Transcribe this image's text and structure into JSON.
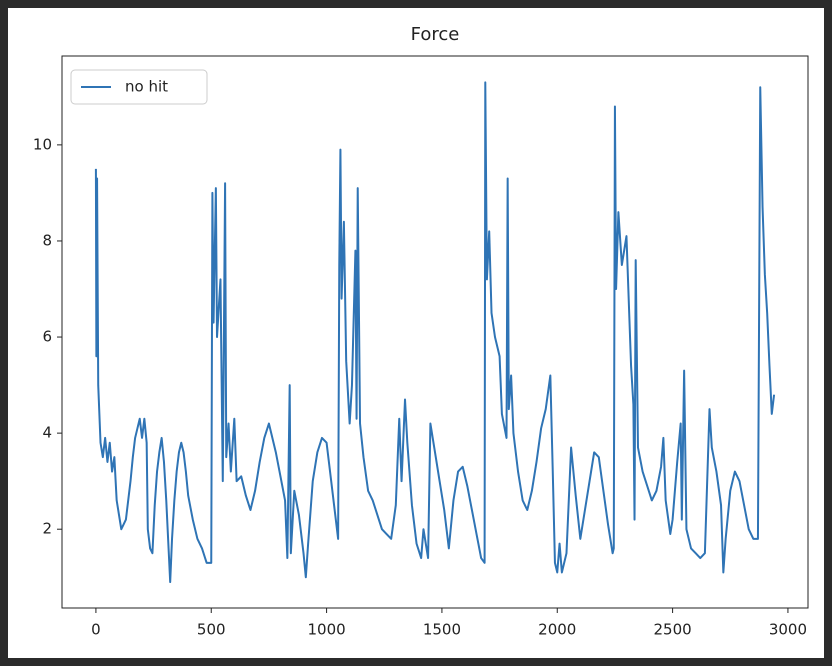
{
  "chart_data": {
    "type": "line",
    "title": "Force",
    "x": [
      0,
      2,
      5,
      10,
      20,
      30,
      40,
      50,
      60,
      70,
      80,
      90,
      100,
      110,
      120,
      130,
      140,
      150,
      160,
      170,
      180,
      190,
      200,
      210,
      220,
      225,
      235,
      245,
      255,
      265,
      275,
      285,
      295,
      305,
      315,
      322,
      330,
      340,
      350,
      360,
      370,
      380,
      390,
      400,
      420,
      440,
      460,
      480,
      500,
      505,
      510,
      520,
      525,
      540,
      550,
      560,
      565,
      575,
      585,
      600,
      610,
      630,
      650,
      670,
      690,
      710,
      730,
      750,
      760,
      780,
      800,
      820,
      830,
      840,
      845,
      860,
      880,
      900,
      910,
      920,
      940,
      960,
      980,
      1000,
      1020,
      1040,
      1050,
      1055,
      1060,
      1065,
      1075,
      1085,
      1100,
      1110,
      1125,
      1130,
      1135,
      1145,
      1160,
      1180,
      1200,
      1220,
      1240,
      1260,
      1280,
      1300,
      1315,
      1325,
      1340,
      1350,
      1370,
      1390,
      1410,
      1420,
      1440,
      1450,
      1470,
      1490,
      1510,
      1530,
      1550,
      1570,
      1590,
      1610,
      1630,
      1650,
      1670,
      1685,
      1688,
      1695,
      1705,
      1715,
      1730,
      1750,
      1760,
      1780,
      1785,
      1790,
      1800,
      1810,
      1830,
      1850,
      1870,
      1890,
      1910,
      1930,
      1950,
      1970,
      1980,
      1990,
      2000,
      2010,
      2020,
      2040,
      2060,
      2080,
      2100,
      2120,
      2140,
      2160,
      2180,
      2200,
      2220,
      2240,
      2245,
      2250,
      2255,
      2265,
      2280,
      2300,
      2320,
      2330,
      2335,
      2340,
      2350,
      2370,
      2390,
      2410,
      2430,
      2450,
      2460,
      2470,
      2490,
      2500,
      2520,
      2535,
      2540,
      2550,
      2560,
      2580,
      2600,
      2620,
      2640,
      2660,
      2670,
      2690,
      2710,
      2720,
      2730,
      2750,
      2770,
      2790,
      2810,
      2830,
      2850,
      2870,
      2880,
      2890,
      2900,
      2910,
      2920,
      2930,
      2940
    ],
    "series": [
      {
        "name": "no hit",
        "color": "#2f74b5",
        "values": [
          9.5,
          5.6,
          9.3,
          5,
          3.8,
          3.5,
          3.9,
          3.4,
          3.8,
          3.2,
          3.5,
          2.6,
          2.3,
          2.0,
          2.1,
          2.2,
          2.6,
          3.0,
          3.5,
          3.9,
          4.1,
          4.3,
          3.9,
          4.3,
          3.8,
          2.0,
          1.6,
          1.5,
          2.5,
          3.2,
          3.6,
          3.9,
          3.4,
          2.6,
          1.6,
          0.9,
          1.8,
          2.6,
          3.2,
          3.6,
          3.8,
          3.6,
          3.2,
          2.7,
          2.2,
          1.8,
          1.6,
          1.3,
          1.3,
          9.0,
          6.3,
          9.1,
          6.0,
          7.2,
          3.0,
          9.2,
          3.5,
          4.2,
          3.2,
          4.3,
          3.0,
          3.1,
          2.7,
          2.4,
          2.8,
          3.4,
          3.9,
          4.2,
          4.0,
          3.6,
          3.1,
          2.6,
          1.4,
          5.0,
          1.5,
          2.8,
          2.3,
          1.5,
          1.0,
          1.7,
          3.0,
          3.6,
          3.9,
          3.8,
          3.0,
          2.2,
          1.8,
          7.5,
          9.9,
          6.8,
          8.4,
          5.5,
          4.2,
          5.0,
          7.8,
          4.3,
          9.1,
          4.2,
          3.5,
          2.8,
          2.6,
          2.3,
          2.0,
          1.9,
          1.8,
          2.5,
          4.3,
          3.0,
          4.7,
          3.8,
          2.5,
          1.7,
          1.4,
          2.0,
          1.4,
          4.2,
          3.6,
          3.0,
          2.4,
          1.6,
          2.6,
          3.2,
          3.3,
          2.9,
          2.4,
          1.9,
          1.4,
          1.3,
          11.3,
          7.2,
          8.2,
          6.5,
          6.0,
          5.6,
          4.4,
          3.9,
          9.3,
          4.5,
          5.2,
          4.0,
          3.2,
          2.6,
          2.4,
          2.8,
          3.4,
          4.1,
          4.5,
          5.2,
          3.3,
          1.3,
          1.1,
          1.7,
          1.1,
          1.5,
          3.7,
          2.7,
          1.8,
          2.4,
          3.0,
          3.6,
          3.5,
          2.8,
          2.1,
          1.5,
          1.6,
          10.8,
          7.0,
          8.6,
          7.5,
          8.1,
          5.4,
          4.6,
          2.2,
          7.6,
          3.7,
          3.2,
          2.9,
          2.6,
          2.8,
          3.3,
          3.9,
          2.6,
          1.9,
          2.2,
          3.4,
          4.2,
          2.2,
          5.3,
          2.0,
          1.6,
          1.5,
          1.4,
          1.5,
          4.5,
          3.7,
          3.2,
          2.5,
          1.1,
          1.8,
          2.8,
          3.2,
          3.0,
          2.5,
          2.0,
          1.8,
          1.8,
          11.2,
          8.7,
          7.3,
          6.5,
          5.4,
          4.4,
          4.8
        ]
      }
    ],
    "xlim": [
      -147,
      3087
    ],
    "ylim": [
      0.36,
      11.85
    ],
    "xticks": [
      0,
      500,
      1000,
      1500,
      2000,
      2500,
      3000
    ],
    "yticks": [
      2,
      4,
      6,
      8,
      10
    ],
    "legend": "upper left"
  }
}
